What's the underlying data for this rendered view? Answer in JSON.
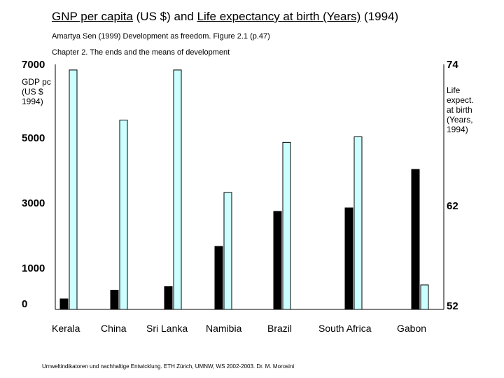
{
  "chart_data": {
    "type": "bar",
    "title_parts": [
      "GNP per capita",
      " (US $) and ",
      "Life expectancy at birth (Years)",
      " (1994)"
    ],
    "subtitle": "Amartya Sen (1999) Development as freedom. Figure 2.1 (p.47)",
    "subtitle2": "Chapter 2. The ends and the means of development",
    "ylabel_left": "GDP pc (US $ 1994)",
    "ylabel_right": "Life expect. at birth (Years, 1994)",
    "categories": [
      "Kerala",
      "China",
      "Sri Lanka",
      "Namibia",
      "Brazil",
      "South Africa",
      "Gabon"
    ],
    "series": [
      {
        "name": "GNP per capita (US $)",
        "axis": "left",
        "color": "#000000",
        "values": [
          300,
          550,
          650,
          1800,
          2800,
          2900,
          4000
        ]
      },
      {
        "name": "Life expectancy at birth (Years)",
        "axis": "right",
        "color": "#CCFFFF",
        "values": [
          73.5,
          69,
          73.5,
          62.5,
          67,
          67.5,
          54.2
        ]
      }
    ],
    "ylim_left": [
      0,
      7000
    ],
    "ylim_right": [
      52,
      74
    ],
    "yticks_left": [
      "7000",
      "5000",
      "3000",
      "1000",
      "0"
    ],
    "yticks_right": [
      "74",
      "62",
      "52"
    ],
    "grid": false
  },
  "footer": "Umweltindikatoren und nachhaltige Entwicklung. ETH Zürich, UMNW, WS 2002-2003. Dr. M. Morosini"
}
